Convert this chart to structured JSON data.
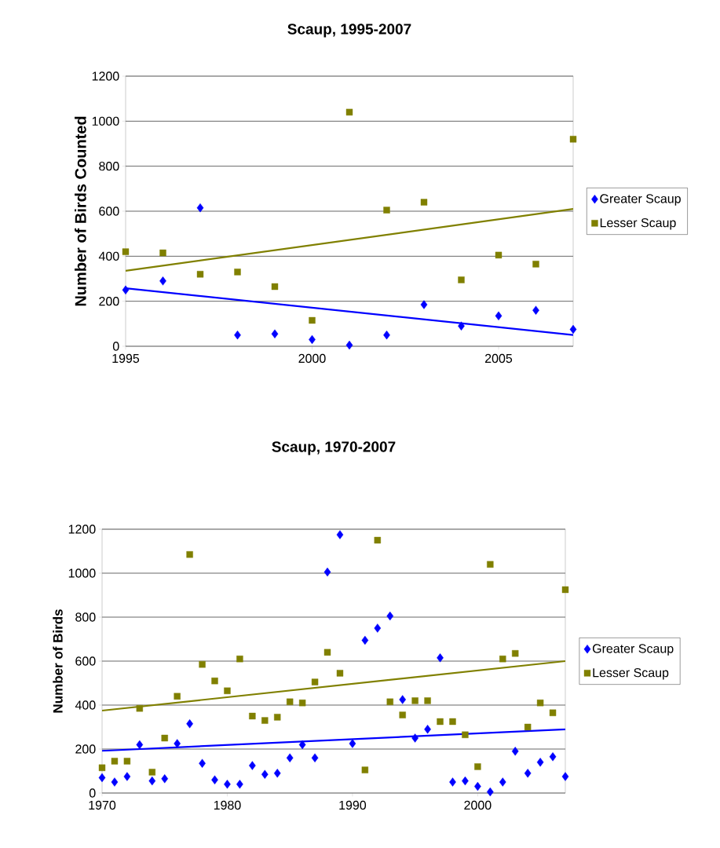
{
  "chart_data": [
    {
      "type": "scatter",
      "title": "Scaup, 1995-2007",
      "ylabel": "Number of Birds Counted",
      "x": [
        1995,
        1996,
        1997,
        1998,
        1999,
        2000,
        2001,
        2002,
        2003,
        2004,
        2005,
        2006,
        2007
      ],
      "xlim": [
        1995,
        2007
      ],
      "xticks": [
        1995,
        2000,
        2005
      ],
      "ylim": [
        0,
        1200
      ],
      "yticks": [
        0,
        200,
        400,
        600,
        800,
        1000,
        1200
      ],
      "grid": "y",
      "legend": "right",
      "series": [
        {
          "name": "Greater Scaup",
          "color": "#0000ff",
          "marker": "diamond",
          "values": [
            250,
            290,
            615,
            50,
            55,
            30,
            5,
            50,
            185,
            90,
            135,
            160,
            75
          ]
        },
        {
          "name": "Lesser Scaup",
          "color": "#808000",
          "marker": "square",
          "values": [
            420,
            415,
            320,
            330,
            265,
            115,
            1040,
            605,
            640,
            295,
            405,
            365,
            920
          ]
        },
        {
          "type": "line",
          "color": "#0000ff",
          "marker": "none",
          "x": [
            1995,
            2007
          ],
          "values": [
            258,
            50
          ]
        },
        {
          "type": "line",
          "color": "#808000",
          "marker": "none",
          "x": [
            1995,
            2007
          ],
          "values": [
            335,
            610
          ]
        }
      ]
    },
    {
      "type": "scatter",
      "title": "Scaup, 1970-2007",
      "ylabel": "Number of Birds",
      "x": [
        1970,
        1971,
        1972,
        1973,
        1974,
        1975,
        1976,
        1977,
        1978,
        1979,
        1980,
        1981,
        1982,
        1983,
        1984,
        1985,
        1986,
        1987,
        1988,
        1989,
        1990,
        1991,
        1992,
        1993,
        1994,
        1995,
        1996,
        1997,
        1998,
        1999,
        2000,
        2001,
        2002,
        2003,
        2004,
        2005,
        2006,
        2007
      ],
      "xlim": [
        1970,
        2007
      ],
      "xticks": [
        1970,
        1980,
        1990,
        2000
      ],
      "ylim": [
        0,
        1200
      ],
      "yticks": [
        0,
        200,
        400,
        600,
        800,
        1000,
        1200
      ],
      "grid": "y",
      "legend": "right",
      "series": [
        {
          "name": "Greater Scaup",
          "color": "#0000ff",
          "marker": "diamond",
          "values": [
            70,
            50,
            75,
            220,
            55,
            65,
            225,
            315,
            135,
            60,
            40,
            40,
            125,
            85,
            90,
            160,
            220,
            160,
            1005,
            1175,
            225,
            695,
            750,
            805,
            425,
            250,
            290,
            615,
            50,
            55,
            30,
            5,
            50,
            190,
            90,
            140,
            165,
            75
          ]
        },
        {
          "name": "Lesser Scaup",
          "color": "#808000",
          "marker": "square",
          "values": [
            115,
            145,
            145,
            385,
            95,
            250,
            440,
            1085,
            585,
            510,
            465,
            610,
            350,
            330,
            345,
            415,
            410,
            505,
            640,
            545,
            null,
            105,
            1150,
            415,
            355,
            420,
            420,
            325,
            325,
            265,
            120,
            1040,
            610,
            635,
            300,
            410,
            365,
            925
          ]
        },
        {
          "type": "line",
          "color": "#0000ff",
          "marker": "none",
          "x": [
            1970,
            2007
          ],
          "values": [
            192,
            290
          ]
        },
        {
          "type": "line",
          "color": "#808000",
          "marker": "none",
          "x": [
            1970,
            2007
          ],
          "values": [
            375,
            600
          ]
        }
      ]
    }
  ]
}
